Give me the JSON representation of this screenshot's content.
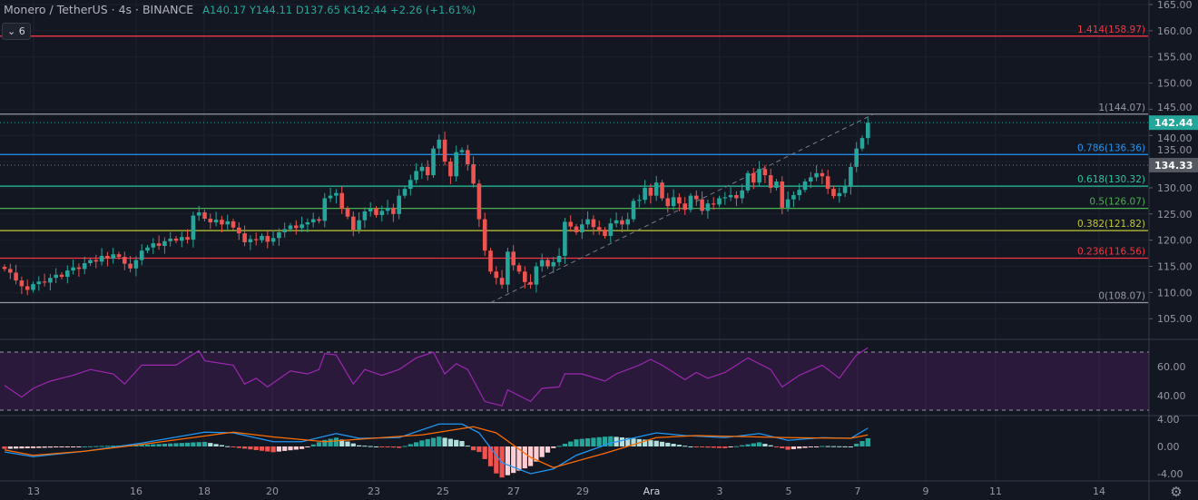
{
  "header": {
    "symbol": "Monero / TetherUS",
    "interval": "4s",
    "exchange": "BINANCE",
    "open_label": "A",
    "open": "140.17",
    "high_label": "Y",
    "high": "144.11",
    "low_label": "D",
    "low": "137.65",
    "close_label": "K",
    "close": "142.44",
    "change": "+2.26 (+1.61%)",
    "indicators_toggle": "6"
  },
  "colors": {
    "background": "#131722",
    "up": "#26a69a",
    "down": "#ef5350",
    "rsi": "#9c27b0",
    "macd": "#2196f3",
    "signal": "#ff6d00"
  },
  "chart_data": [
    {
      "type": "candlestick",
      "title": "Monero / TetherUS · 4s · BINANCE",
      "ylim": [
        102,
        167
      ],
      "y_ticks": [
        "165.00",
        "160.00",
        "155.00",
        "150.00",
        "145.00",
        "140.00",
        "135.00",
        "130.00",
        "125.00",
        "120.00",
        "115.00",
        "110.00",
        "105.00"
      ],
      "x_ticks": [
        "13",
        "16",
        "18",
        "20",
        "23",
        "25",
        "27",
        "29",
        "Ara",
        "3",
        "5",
        "7",
        "9",
        "11",
        "14"
      ],
      "close": [
        114.5,
        113.8,
        112.3,
        111.2,
        110.5,
        111.6,
        112.1,
        111.9,
        112.8,
        113.4,
        113.0,
        114.2,
        114.8,
        114.5,
        115.6,
        116.2,
        115.9,
        117.0,
        116.5,
        117.3,
        116.8,
        115.5,
        114.6,
        116.2,
        118.0,
        118.6,
        119.4,
        118.9,
        119.8,
        120.3,
        119.9,
        120.6,
        120.1,
        124.7,
        125.3,
        124.1,
        123.4,
        123.9,
        123.0,
        123.6,
        122.4,
        121.3,
        119.6,
        120.2,
        120.0,
        120.8,
        119.7,
        120.4,
        121.5,
        122.1,
        122.8,
        122.3,
        123.0,
        123.4,
        124.0,
        123.7,
        128.0,
        128.5,
        129.0,
        126.0,
        124.5,
        122.0,
        123.8,
        125.5,
        126.0,
        124.8,
        125.6,
        126.2,
        125.0,
        128.5,
        129.8,
        131.5,
        133.2,
        134.0,
        132.4,
        137.5,
        139.2,
        135.0,
        132.2,
        136.8,
        137.2,
        134.5,
        130.8,
        124.0,
        118.0,
        114.0,
        112.8,
        111.5,
        117.8,
        115.2,
        114.0,
        112.0,
        111.5,
        115.0,
        116.2,
        115.0,
        115.8,
        117.0,
        123.5,
        122.6,
        121.5,
        123.0,
        124.0,
        122.5,
        122.0,
        120.8,
        123.2,
        123.8,
        123.0,
        124.0,
        127.5,
        127.7,
        130.0,
        128.5,
        131.0,
        128.0,
        126.5,
        128.2,
        127.0,
        125.8,
        128.5,
        127.8,
        125.6,
        127.0,
        126.8,
        128.0,
        128.2,
        128.6,
        128.0,
        129.5,
        132.8,
        131.0,
        133.6,
        132.4,
        130.0,
        131.2,
        126.2,
        127.8,
        128.6,
        129.6,
        131.2,
        132.0,
        132.8,
        132.2,
        129.8,
        128.4,
        129.0,
        130.2,
        134.0,
        137.5,
        139.5,
        142.44
      ],
      "last_price": "142.44",
      "crosshair_price": "134.33",
      "fibonacci": [
        {
          "label": "1.414(158.97)",
          "price": 158.97,
          "color": "#f23645"
        },
        {
          "label": "1(144.07)",
          "price": 144.07,
          "color": "#9598a1"
        },
        {
          "label": "0.786(136.36)",
          "price": 136.36,
          "color": "#2196f3"
        },
        {
          "label": "0.618(130.32)",
          "price": 130.32,
          "color": "#26c6a0"
        },
        {
          "label": "0.5(126.07)",
          "price": 126.07,
          "color": "#4caf50"
        },
        {
          "label": "0.382(121.82)",
          "price": 121.82,
          "color": "#c0ca33"
        },
        {
          "label": "0.236(116.56)",
          "price": 116.56,
          "color": "#f23645"
        },
        {
          "label": "0(108.07)",
          "price": 108.07,
          "color": "#9598a1"
        }
      ],
      "trend_line": {
        "from": {
          "bar": 85,
          "price": 108.07
        },
        "to": {
          "bar": 152,
          "price": 144.07
        }
      }
    },
    {
      "type": "line",
      "name": "RSI",
      "ylim": [
        25,
        77
      ],
      "y_ticks": [
        "60.00",
        "40.00"
      ],
      "bands": [
        30,
        70
      ],
      "points": [
        [
          0,
          47
        ],
        [
          3,
          39
        ],
        [
          5,
          45
        ],
        [
          8,
          50
        ],
        [
          12,
          54
        ],
        [
          15,
          58
        ],
        [
          19,
          55
        ],
        [
          21,
          48
        ],
        [
          24,
          61
        ],
        [
          26,
          61
        ],
        [
          30,
          61
        ],
        [
          34,
          71
        ],
        [
          35,
          64
        ],
        [
          40,
          61
        ],
        [
          42,
          48
        ],
        [
          44,
          52
        ],
        [
          46,
          46
        ],
        [
          50,
          57
        ],
        [
          53,
          55
        ],
        [
          55,
          58
        ],
        [
          56,
          69
        ],
        [
          58,
          68
        ],
        [
          61,
          48
        ],
        [
          63,
          58
        ],
        [
          66,
          54
        ],
        [
          69,
          58
        ],
        [
          72,
          66
        ],
        [
          75,
          70
        ],
        [
          77,
          55
        ],
        [
          79,
          62
        ],
        [
          81,
          58
        ],
        [
          84,
          36
        ],
        [
          87,
          33
        ],
        [
          88,
          44
        ],
        [
          92,
          36
        ],
        [
          94,
          45
        ],
        [
          97,
          46
        ],
        [
          98,
          55
        ],
        [
          101,
          55
        ],
        [
          105,
          50
        ],
        [
          107,
          55
        ],
        [
          111,
          61
        ],
        [
          113,
          65
        ],
        [
          115,
          61
        ],
        [
          119,
          51
        ],
        [
          121,
          56
        ],
        [
          123,
          52
        ],
        [
          126,
          56
        ],
        [
          130,
          66
        ],
        [
          134,
          58
        ],
        [
          136,
          46
        ],
        [
          139,
          54
        ],
        [
          143,
          61
        ],
        [
          146,
          52
        ],
        [
          149,
          68
        ],
        [
          151,
          73
        ]
      ]
    },
    {
      "type": "line",
      "name": "MACD",
      "ylim": [
        -4.5,
        4.4
      ],
      "y_ticks": [
        "4.00",
        "0.00",
        "-4.00"
      ],
      "macd": [
        [
          0,
          -0.8
        ],
        [
          5,
          -1.5
        ],
        [
          14,
          -0.7
        ],
        [
          24,
          0.5
        ],
        [
          35,
          2.1
        ],
        [
          40,
          2.0
        ],
        [
          47,
          0.7
        ],
        [
          52,
          0.7
        ],
        [
          58,
          1.9
        ],
        [
          62,
          1.2
        ],
        [
          69,
          1.3
        ],
        [
          76,
          3.3
        ],
        [
          80,
          3.3
        ],
        [
          83,
          2.0
        ],
        [
          87,
          -2.4
        ],
        [
          92,
          -4.0
        ],
        [
          96,
          -3.3
        ],
        [
          100,
          -1.3
        ],
        [
          106,
          0.5
        ],
        [
          114,
          2.0
        ],
        [
          119,
          1.6
        ],
        [
          126,
          1.3
        ],
        [
          132,
          1.9
        ],
        [
          137,
          0.9
        ],
        [
          143,
          1.3
        ],
        [
          148,
          1.2
        ],
        [
          151,
          2.7
        ]
      ],
      "signal": [
        [
          0,
          -0.5
        ],
        [
          5,
          -1.3
        ],
        [
          14,
          -0.7
        ],
        [
          24,
          0.3
        ],
        [
          40,
          2.1
        ],
        [
          47,
          1.4
        ],
        [
          56,
          0.7
        ],
        [
          66,
          1.3
        ],
        [
          73,
          1.7
        ],
        [
          82,
          2.9
        ],
        [
          86,
          2.0
        ],
        [
          92,
          -1.6
        ],
        [
          96,
          -3.1
        ],
        [
          105,
          -1.0
        ],
        [
          114,
          1.3
        ],
        [
          121,
          1.6
        ],
        [
          137,
          1.3
        ],
        [
          148,
          1.2
        ],
        [
          151,
          1.7
        ]
      ]
    }
  ]
}
